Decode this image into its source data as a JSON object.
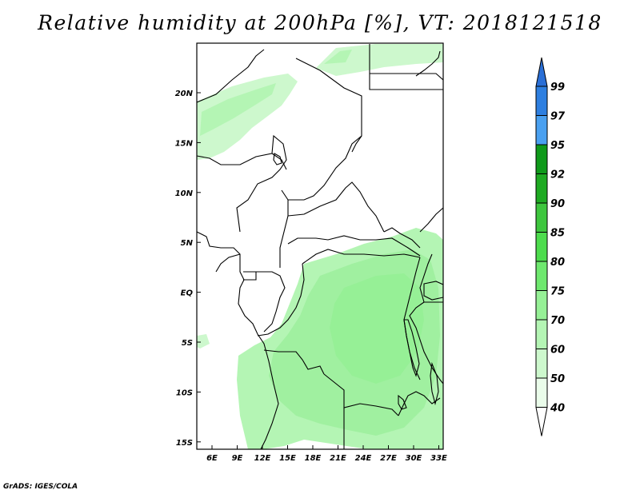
{
  "title": "Relative humidity at 200hPa [%], VT: 2018121518",
  "credit": "GrADS: IGES/COLA",
  "lon_labels": [
    "6E",
    "9E",
    "12E",
    "15E",
    "18E",
    "21E",
    "24E",
    "27E",
    "30E",
    "33E"
  ],
  "lat_labels": [
    "20N",
    "15N",
    "10N",
    "5N",
    "EQ",
    "5S",
    "10S",
    "15S"
  ],
  "colorbar": {
    "labels": [
      "99",
      "97",
      "95",
      "92",
      "90",
      "85",
      "80",
      "75",
      "70",
      "60",
      "50",
      "40"
    ],
    "colors": {
      "above_99": "#2a6fd6",
      "97_99": "#2e7fe0",
      "95_97": "#4aa0f0",
      "92_95": "#0f9a1a",
      "90_92": "#1eaa22",
      "85_90": "#3ec63e",
      "80_85": "#4ddc4d",
      "75_80": "#6ee86e",
      "70_75": "#96f096",
      "60_70": "#b4f5b4",
      "50_60": "#cdf8cd",
      "40_50": "#eafcea",
      "below_40": "#ffffff"
    }
  }
}
